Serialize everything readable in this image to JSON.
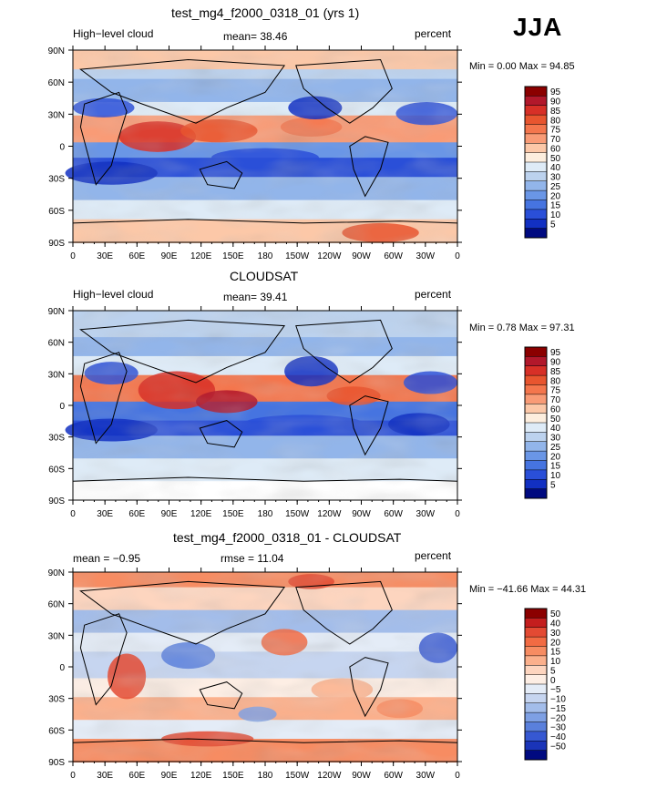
{
  "season_label": "JJA",
  "panels": [
    {
      "title": "test_mg4_f2000_0318_01 (yrs 1)",
      "left_label": "High−level cloud",
      "center_label": "mean=  38.46",
      "right_label": "percent",
      "minmax": "Min =   0.00 Max =  94.85",
      "colorbar_labels": [
        "95",
        "90",
        "85",
        "80",
        "75",
        "70",
        "60",
        "50",
        "40",
        "30",
        "25",
        "20",
        "15",
        "10",
        "5"
      ],
      "colorbar_colors": [
        "#8b0000",
        "#b2182b",
        "#d73027",
        "#e8552f",
        "#f4764d",
        "#f99b76",
        "#fcc8a8",
        "#fdeede",
        "#deebf7",
        "#bcd2ee",
        "#92b5ea",
        "#6a96e6",
        "#4674e0",
        "#2a4fd8",
        "#1230c2",
        "#000a80"
      ]
    },
    {
      "title": "CLOUDSAT",
      "left_label": "High−level cloud",
      "center_label": "mean=  39.41",
      "right_label": "percent",
      "minmax": "Min =   0.78 Max =  97.31",
      "colorbar_labels": [
        "95",
        "90",
        "85",
        "80",
        "75",
        "70",
        "60",
        "50",
        "40",
        "30",
        "25",
        "20",
        "15",
        "10",
        "5"
      ],
      "colorbar_colors": [
        "#8b0000",
        "#b2182b",
        "#d73027",
        "#e8552f",
        "#f4764d",
        "#f99b76",
        "#fcc8a8",
        "#fdeede",
        "#deebf7",
        "#bcd2ee",
        "#92b5ea",
        "#6a96e6",
        "#4674e0",
        "#2a4fd8",
        "#1230c2",
        "#000a80"
      ]
    },
    {
      "title": "test_mg4_f2000_0318_01 - CLOUDSAT",
      "left_label": "mean =  −0.95",
      "center_label": "rmse =  11.04",
      "right_label": "percent",
      "minmax": "Min = −41.66 Max =  44.31",
      "colorbar_labels": [
        "50",
        "40",
        "30",
        "20",
        "15",
        "10",
        "5",
        "0",
        "−5",
        "−10",
        "−15",
        "−20",
        "−30",
        "−40",
        "−50"
      ],
      "colorbar_colors": [
        "#8b0000",
        "#c41e1e",
        "#e34a33",
        "#f26b43",
        "#f78c62",
        "#fbb08c",
        "#fdd5bf",
        "#fdeee4",
        "#e4ecf7",
        "#c6d5f0",
        "#a3bdea",
        "#7ea0e4",
        "#5a80dc",
        "#3658d2",
        "#1a34b8",
        "#000a80"
      ]
    }
  ],
  "x_tick_labels": [
    "0",
    "30E",
    "60E",
    "90E",
    "120E",
    "150E",
    "180",
    "150W",
    "120W",
    "90W",
    "60W",
    "30W",
    "0"
  ],
  "y_tick_labels": [
    "90N",
    "60N",
    "30N",
    "0",
    "30S",
    "60S",
    "90S"
  ],
  "chart_data": [
    {
      "type": "heatmap",
      "title": "test_mg4_f2000_0318_01 (yrs 1)",
      "variable": "High−level cloud",
      "units": "percent",
      "mean": 38.46,
      "min": 0.0,
      "max": 94.85,
      "x_range": [
        0,
        360
      ],
      "y_range": [
        -90,
        90
      ],
      "x_ticks": [
        "0",
        "30E",
        "60E",
        "90E",
        "120E",
        "150E",
        "180",
        "150W",
        "120W",
        "90W",
        "60W",
        "30W",
        "0"
      ],
      "y_ticks": [
        "90N",
        "60N",
        "30N",
        "0",
        "30S",
        "60S",
        "90S"
      ],
      "contour_levels": [
        5,
        10,
        15,
        20,
        25,
        30,
        40,
        50,
        60,
        70,
        75,
        80,
        85,
        90,
        95
      ]
    },
    {
      "type": "heatmap",
      "title": "CLOUDSAT",
      "variable": "High−level cloud",
      "units": "percent",
      "mean": 39.41,
      "min": 0.78,
      "max": 97.31,
      "x_range": [
        0,
        360
      ],
      "y_range": [
        -90,
        90
      ],
      "contour_levels": [
        5,
        10,
        15,
        20,
        25,
        30,
        40,
        50,
        60,
        70,
        75,
        80,
        85,
        90,
        95
      ]
    },
    {
      "type": "heatmap",
      "title": "test_mg4_f2000_0318_01 - CLOUDSAT",
      "units": "percent",
      "mean": -0.95,
      "rmse": 11.04,
      "min": -41.66,
      "max": 44.31,
      "x_range": [
        0,
        360
      ],
      "y_range": [
        -90,
        90
      ],
      "contour_levels": [
        -50,
        -40,
        -30,
        -20,
        -15,
        -10,
        -5,
        0,
        5,
        10,
        15,
        20,
        30,
        40,
        50
      ]
    }
  ]
}
